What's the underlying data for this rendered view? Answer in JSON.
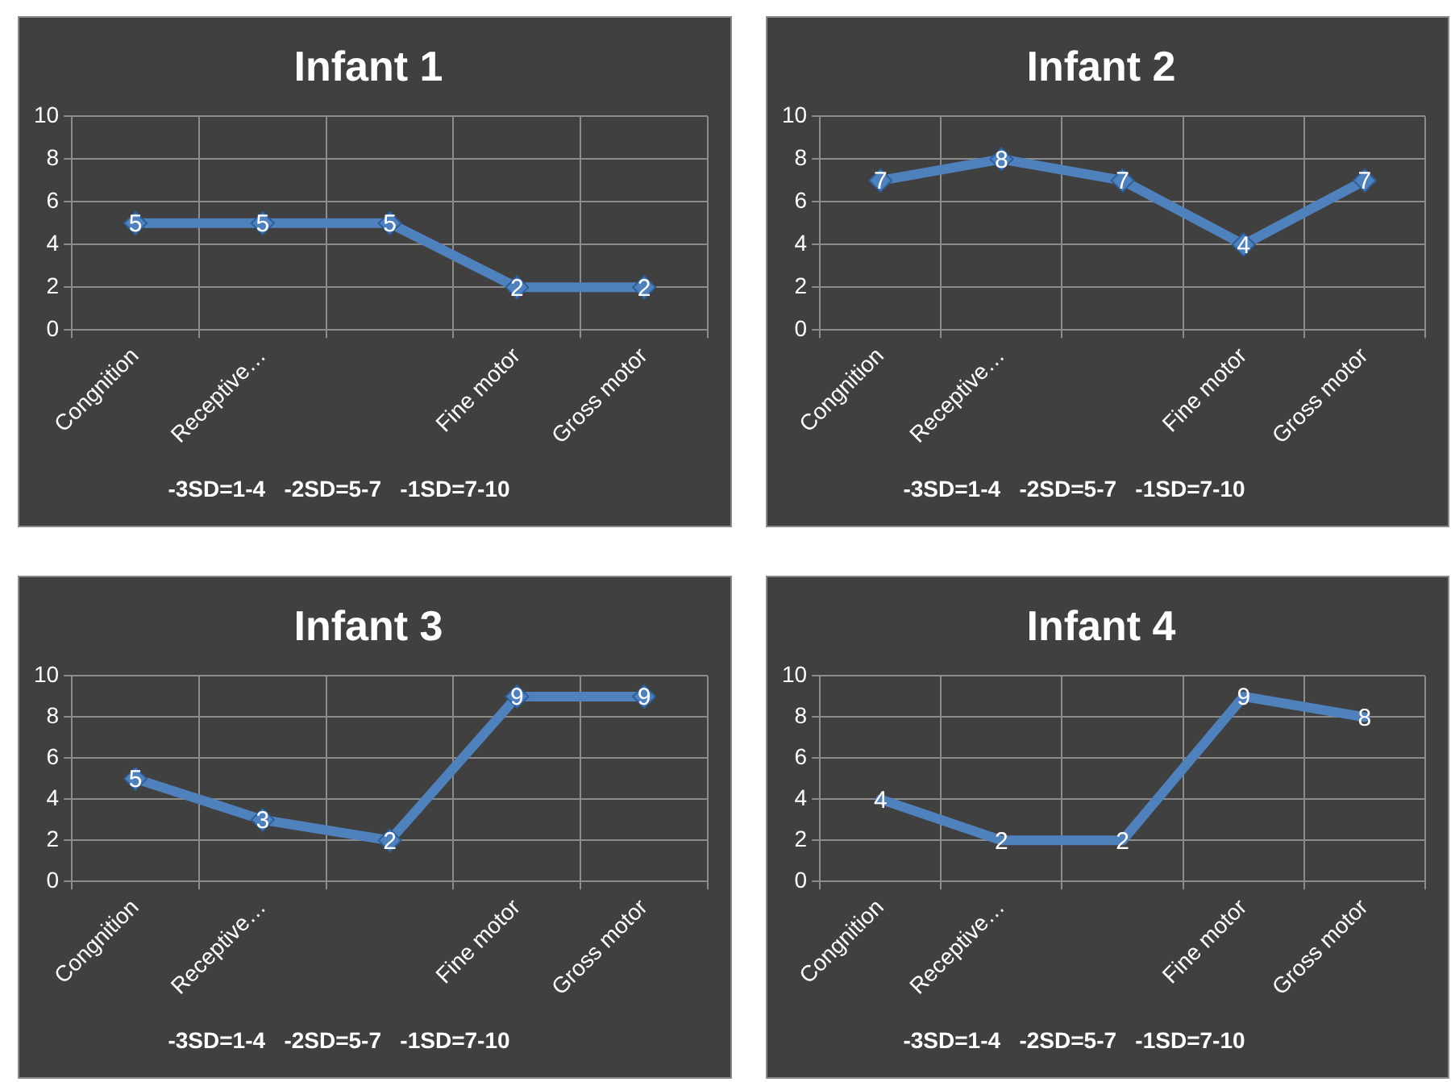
{
  "chart_data": [
    {
      "type": "line",
      "title": "Infant 1",
      "categories": [
        "Congnition",
        "Receptive…",
        null,
        "Fine motor",
        "Gross motor"
      ],
      "series": [
        {
          "color": "#4f81bd",
          "values": [
            5,
            5,
            5,
            2,
            2
          ]
        }
      ],
      "ylim": [
        0,
        10
      ],
      "yticks": [
        0,
        2,
        4,
        6,
        8,
        10
      ],
      "grid": true,
      "legend": false,
      "marker": "diamond",
      "line_style": "solid",
      "data_labels": true,
      "annotations": [
        "-3SD=1-4   -2SD=5-7   -1SD=7-10"
      ]
    },
    {
      "type": "line",
      "title": "Infant 2",
      "categories": [
        "Congnition",
        "Receptive…",
        null,
        "Fine motor",
        "Gross motor"
      ],
      "series": [
        {
          "color": "#4f81bd",
          "values": [
            7,
            8,
            7,
            4,
            7
          ]
        }
      ],
      "ylim": [
        0,
        10
      ],
      "yticks": [
        0,
        2,
        4,
        6,
        8,
        10
      ],
      "grid": true,
      "legend": false,
      "marker": "diamond",
      "line_style": "solid",
      "data_labels": true,
      "annotations": [
        "-3SD=1-4   -2SD=5-7   -1SD=7-10"
      ]
    },
    {
      "type": "line",
      "title": "Infant 3",
      "categories": [
        "Congnition",
        "Receptive…",
        null,
        "Fine motor",
        "Gross motor"
      ],
      "series": [
        {
          "color": "#4f81bd",
          "values": [
            5,
            3,
            2,
            9,
            9
          ]
        }
      ],
      "ylim": [
        0,
        10
      ],
      "yticks": [
        0,
        2,
        4,
        6,
        8,
        10
      ],
      "grid": true,
      "legend": false,
      "marker": "diamond",
      "line_style": "solid",
      "data_labels": true,
      "annotations": [
        "-3SD=1-4   -2SD=5-7   -1SD=7-10"
      ]
    },
    {
      "type": "line",
      "title": "Infant 4",
      "categories": [
        "Congnition",
        "Receptive…",
        null,
        "Fine motor",
        "Gross motor"
      ],
      "series": [
        {
          "color": "#4f81bd",
          "values": [
            4,
            2,
            2,
            9,
            8
          ]
        }
      ],
      "ylim": [
        0,
        10
      ],
      "yticks": [
        0,
        2,
        4,
        6,
        8,
        10
      ],
      "grid": true,
      "legend": false,
      "marker": "none",
      "line_style": "solid",
      "data_labels": true,
      "annotations": [
        "-3SD=1-4   -2SD=5-7   -1SD=7-10"
      ]
    }
  ]
}
